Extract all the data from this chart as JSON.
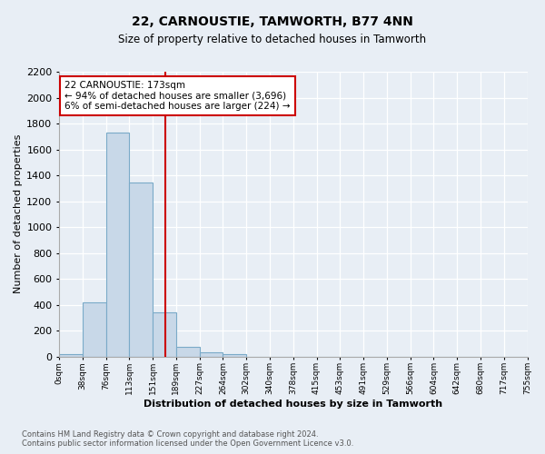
{
  "title": "22, CARNOUSTIE, TAMWORTH, B77 4NN",
  "subtitle": "Size of property relative to detached houses in Tamworth",
  "xlabel": "Distribution of detached houses by size in Tamworth",
  "ylabel": "Number of detached properties",
  "bar_color": "#c8d8e8",
  "bar_edge_color": "#7aaac8",
  "bin_labels": [
    "0sqm",
    "38sqm",
    "76sqm",
    "113sqm",
    "151sqm",
    "189sqm",
    "227sqm",
    "264sqm",
    "302sqm",
    "340sqm",
    "378sqm",
    "415sqm",
    "453sqm",
    "491sqm",
    "529sqm",
    "566sqm",
    "604sqm",
    "642sqm",
    "680sqm",
    "717sqm",
    "755sqm"
  ],
  "bar_values": [
    15,
    415,
    1730,
    1345,
    340,
    75,
    30,
    15,
    0,
    0,
    0,
    0,
    0,
    0,
    0,
    0,
    0,
    0,
    0,
    0
  ],
  "vline_x": 4.55,
  "vline_color": "#cc0000",
  "annotation_text": "22 CARNOUSTIE: 173sqm\n← 94% of detached houses are smaller (3,696)\n6% of semi-detached houses are larger (224) →",
  "annotation_box_color": "#cc0000",
  "ylim": [
    0,
    2200
  ],
  "yticks": [
    0,
    200,
    400,
    600,
    800,
    1000,
    1200,
    1400,
    1600,
    1800,
    2000,
    2200
  ],
  "footer_line1": "Contains HM Land Registry data © Crown copyright and database right 2024.",
  "footer_line2": "Contains public sector information licensed under the Open Government Licence v3.0.",
  "bg_color": "#e8eef5",
  "plot_bg_color": "#e8eef5",
  "grid_color": "#ffffff"
}
